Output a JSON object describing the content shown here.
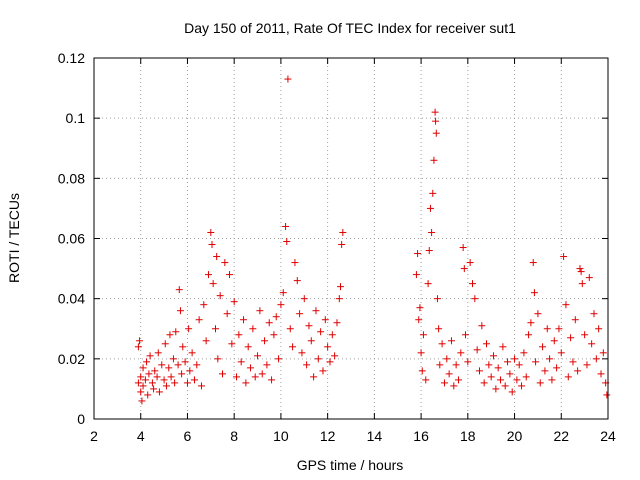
{
  "chart_data": {
    "type": "scatter",
    "title": "Day 150 of 2011, Rate Of TEC Index for receiver sut1",
    "xlabel": "GPS time / hours",
    "ylabel": "ROTI / TECUs",
    "xlim": [
      2,
      24
    ],
    "ylim": [
      0,
      0.12
    ],
    "xticks": [
      "2",
      "4",
      "6",
      "8",
      "10",
      "12",
      "14",
      "16",
      "18",
      "20",
      "22",
      "24"
    ],
    "yticks": [
      "0",
      "0.02",
      "0.04",
      "0.06",
      "0.08",
      "0.1",
      "0.12"
    ],
    "grid": true,
    "marker": "+",
    "color": "#e00000",
    "series": [
      {
        "points": [
          [
            3.9,
            0.012
          ],
          [
            3.9,
            0.024
          ],
          [
            3.95,
            0.026
          ],
          [
            4.0,
            0.009
          ],
          [
            4.0,
            0.014
          ],
          [
            4.05,
            0.006
          ],
          [
            4.1,
            0.017
          ],
          [
            4.1,
            0.011
          ],
          [
            4.2,
            0.013
          ],
          [
            4.25,
            0.019
          ],
          [
            4.3,
            0.008
          ],
          [
            4.35,
            0.015
          ],
          [
            4.4,
            0.021
          ],
          [
            4.5,
            0.012
          ],
          [
            4.55,
            0.01
          ],
          [
            4.6,
            0.016
          ],
          [
            4.7,
            0.014
          ],
          [
            4.75,
            0.022
          ],
          [
            4.8,
            0.009
          ],
          [
            4.9,
            0.018
          ],
          [
            5.0,
            0.013
          ],
          [
            5.05,
            0.025
          ],
          [
            5.1,
            0.011
          ],
          [
            5.2,
            0.017
          ],
          [
            5.25,
            0.028
          ],
          [
            5.3,
            0.014
          ],
          [
            5.4,
            0.02
          ],
          [
            5.45,
            0.012
          ],
          [
            5.5,
            0.029
          ],
          [
            5.6,
            0.018
          ],
          [
            5.65,
            0.043
          ],
          [
            5.7,
            0.036
          ],
          [
            5.75,
            0.015
          ],
          [
            5.8,
            0.024
          ],
          [
            5.9,
            0.019
          ],
          [
            6.0,
            0.012
          ],
          [
            6.05,
            0.03
          ],
          [
            6.1,
            0.016
          ],
          [
            6.2,
            0.022
          ],
          [
            6.3,
            0.013
          ],
          [
            6.4,
            0.018
          ],
          [
            6.5,
            0.033
          ],
          [
            6.6,
            0.011
          ],
          [
            6.7,
            0.038
          ],
          [
            6.8,
            0.026
          ],
          [
            6.9,
            0.048
          ],
          [
            7.0,
            0.062
          ],
          [
            7.05,
            0.058
          ],
          [
            7.1,
            0.045
          ],
          [
            7.2,
            0.03
          ],
          [
            7.25,
            0.054
          ],
          [
            7.3,
            0.02
          ],
          [
            7.4,
            0.041
          ],
          [
            7.5,
            0.015
          ],
          [
            7.6,
            0.052
          ],
          [
            7.7,
            0.035
          ],
          [
            7.8,
            0.048
          ],
          [
            7.9,
            0.025
          ],
          [
            8.0,
            0.039
          ],
          [
            8.1,
            0.014
          ],
          [
            8.2,
            0.028
          ],
          [
            8.3,
            0.019
          ],
          [
            8.4,
            0.033
          ],
          [
            8.5,
            0.012
          ],
          [
            8.6,
            0.024
          ],
          [
            8.7,
            0.017
          ],
          [
            8.8,
            0.03
          ],
          [
            8.9,
            0.014
          ],
          [
            9.0,
            0.021
          ],
          [
            9.1,
            0.036
          ],
          [
            9.2,
            0.015
          ],
          [
            9.3,
            0.026
          ],
          [
            9.4,
            0.018
          ],
          [
            9.5,
            0.032
          ],
          [
            9.6,
            0.013
          ],
          [
            9.7,
            0.028
          ],
          [
            9.8,
            0.034
          ],
          [
            9.9,
            0.02
          ],
          [
            10.0,
            0.038
          ],
          [
            10.1,
            0.042
          ],
          [
            10.2,
            0.064
          ],
          [
            10.25,
            0.059
          ],
          [
            10.3,
            0.113
          ],
          [
            10.4,
            0.03
          ],
          [
            10.5,
            0.024
          ],
          [
            10.6,
            0.052
          ],
          [
            10.7,
            0.046
          ],
          [
            10.8,
            0.035
          ],
          [
            10.9,
            0.022
          ],
          [
            11.0,
            0.04
          ],
          [
            11.1,
            0.018
          ],
          [
            11.2,
            0.031
          ],
          [
            11.3,
            0.026
          ],
          [
            11.4,
            0.014
          ],
          [
            11.5,
            0.036
          ],
          [
            11.6,
            0.02
          ],
          [
            11.7,
            0.029
          ],
          [
            11.8,
            0.016
          ],
          [
            11.9,
            0.033
          ],
          [
            12.0,
            0.024
          ],
          [
            12.1,
            0.019
          ],
          [
            12.2,
            0.028
          ],
          [
            12.3,
            0.021
          ],
          [
            12.4,
            0.032
          ],
          [
            12.5,
            0.04
          ],
          [
            12.55,
            0.044
          ],
          [
            12.6,
            0.058
          ],
          [
            12.65,
            0.062
          ],
          [
            15.8,
            0.048
          ],
          [
            15.85,
            0.055
          ],
          [
            15.9,
            0.033
          ],
          [
            15.95,
            0.037
          ],
          [
            16.0,
            0.022
          ],
          [
            16.05,
            0.016
          ],
          [
            16.1,
            0.028
          ],
          [
            16.2,
            0.013
          ],
          [
            16.3,
            0.045
          ],
          [
            16.35,
            0.056
          ],
          [
            16.4,
            0.07
          ],
          [
            16.45,
            0.062
          ],
          [
            16.5,
            0.075
          ],
          [
            16.55,
            0.086
          ],
          [
            16.6,
            0.102
          ],
          [
            16.62,
            0.099
          ],
          [
            16.65,
            0.095
          ],
          [
            16.7,
            0.04
          ],
          [
            16.75,
            0.03
          ],
          [
            16.8,
            0.018
          ],
          [
            16.9,
            0.025
          ],
          [
            17.0,
            0.012
          ],
          [
            17.1,
            0.02
          ],
          [
            17.2,
            0.015
          ],
          [
            17.3,
            0.026
          ],
          [
            17.4,
            0.011
          ],
          [
            17.5,
            0.018
          ],
          [
            17.6,
            0.013
          ],
          [
            17.7,
            0.022
          ],
          [
            17.8,
            0.057
          ],
          [
            17.85,
            0.05
          ],
          [
            17.9,
            0.028
          ],
          [
            18.0,
            0.019
          ],
          [
            18.1,
            0.052
          ],
          [
            18.2,
            0.045
          ],
          [
            18.3,
            0.04
          ],
          [
            18.4,
            0.023
          ],
          [
            18.5,
            0.016
          ],
          [
            18.6,
            0.031
          ],
          [
            18.7,
            0.012
          ],
          [
            18.8,
            0.025
          ],
          [
            18.9,
            0.018
          ],
          [
            19.0,
            0.014
          ],
          [
            19.1,
            0.021
          ],
          [
            19.2,
            0.01
          ],
          [
            19.3,
            0.017
          ],
          [
            19.4,
            0.013
          ],
          [
            19.5,
            0.024
          ],
          [
            19.6,
            0.011
          ],
          [
            19.7,
            0.019
          ],
          [
            19.8,
            0.015
          ],
          [
            19.9,
            0.009
          ],
          [
            20.0,
            0.02
          ],
          [
            20.1,
            0.013
          ],
          [
            20.2,
            0.018
          ],
          [
            20.3,
            0.011
          ],
          [
            20.4,
            0.022
          ],
          [
            20.5,
            0.014
          ],
          [
            20.6,
            0.028
          ],
          [
            20.7,
            0.032
          ],
          [
            20.8,
            0.052
          ],
          [
            20.85,
            0.042
          ],
          [
            20.9,
            0.019
          ],
          [
            21.0,
            0.035
          ],
          [
            21.1,
            0.012
          ],
          [
            21.2,
            0.024
          ],
          [
            21.3,
            0.016
          ],
          [
            21.4,
            0.03
          ],
          [
            21.5,
            0.02
          ],
          [
            21.6,
            0.013
          ],
          [
            21.7,
            0.026
          ],
          [
            21.8,
            0.017
          ],
          [
            21.9,
            0.03
          ],
          [
            22.0,
            0.022
          ],
          [
            22.1,
            0.054
          ],
          [
            22.2,
            0.038
          ],
          [
            22.3,
            0.014
          ],
          [
            22.4,
            0.027
          ],
          [
            22.5,
            0.019
          ],
          [
            22.6,
            0.033
          ],
          [
            22.7,
            0.016
          ],
          [
            22.8,
            0.05
          ],
          [
            22.85,
            0.049
          ],
          [
            22.9,
            0.045
          ],
          [
            23.0,
            0.028
          ],
          [
            23.1,
            0.018
          ],
          [
            23.2,
            0.047
          ],
          [
            23.3,
            0.025
          ],
          [
            23.4,
            0.035
          ],
          [
            23.5,
            0.02
          ],
          [
            23.6,
            0.03
          ],
          [
            23.7,
            0.015
          ],
          [
            23.8,
            0.022
          ],
          [
            23.9,
            0.012
          ],
          [
            23.95,
            0.008
          ]
        ]
      }
    ]
  }
}
